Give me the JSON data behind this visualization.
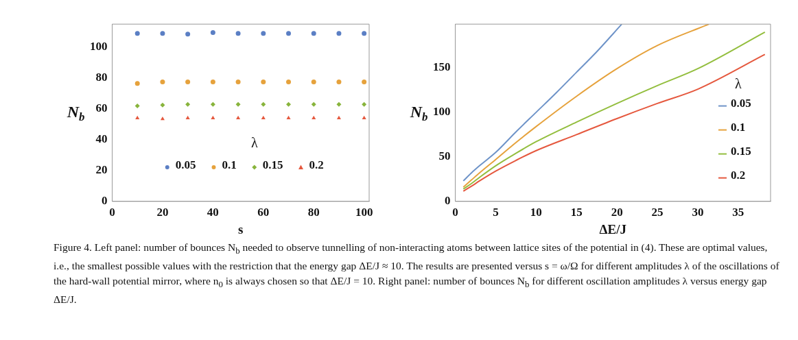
{
  "chart_data": [
    {
      "type": "scatter",
      "xlabel": "s",
      "ylabel": "N$_{b}$",
      "legend_title": "λ",
      "legend": "bottom",
      "x": [
        10,
        20,
        30,
        40,
        50,
        60,
        70,
        80,
        90,
        100
      ],
      "xlim": [
        0,
        102
      ],
      "xticks": [
        0,
        20,
        40,
        60,
        80,
        100
      ],
      "ylim": [
        0,
        115
      ],
      "yticks": [
        0,
        20,
        40,
        60,
        80,
        100
      ],
      "series": [
        {
          "name": "0.05",
          "color": "#5b7fc4",
          "marker": "circle",
          "values": [
            109,
            109,
            108.5,
            109.5,
            109,
            109,
            109,
            109,
            109,
            109
          ]
        },
        {
          "name": "0.1",
          "color": "#e6a23c",
          "marker": "circle",
          "values": [
            76.5,
            77.5,
            77.5,
            77.5,
            77.5,
            77.5,
            77.5,
            77.5,
            77.5,
            77.5
          ]
        },
        {
          "name": "0.15",
          "color": "#88b43c",
          "marker": "diamond",
          "values": [
            62,
            62.5,
            63,
            63,
            63,
            63,
            63,
            63,
            63,
            63
          ]
        },
        {
          "name": "0.2",
          "color": "#e5583e",
          "marker": "triangle",
          "values": [
            54,
            53.5,
            54,
            54,
            54,
            54,
            54,
            54,
            54,
            54
          ]
        }
      ],
      "annotations": [
        "Figure 4. Left panel: number of bounces N$_{b}$ needed to observe tunnelling of non-interacting atoms between lattice sites of the potential in (4). These are optimal values, i.e., the smallest possible values with the restriction that the energy gap ΔE/J ≈ 10. The results are presented versus s = ω/Ω for different amplitudes λ of the oscillations of the hard-wall potential mirror, where n$_{0}$ is always chosen so that ΔE/J = 10. Right panel: number of bounces N$_{b}$ for different oscillation amplitudes λ versus energy gap ΔE/J."
      ]
    },
    {
      "type": "line",
      "xlabel": "ΔE/J",
      "ylabel": "N$_{b}$",
      "legend_title": "λ",
      "legend": "right",
      "xlim": [
        0,
        39
      ],
      "xticks": [
        0,
        5,
        10,
        15,
        20,
        25,
        30,
        35
      ],
      "ylim": [
        0,
        199
      ],
      "yticks": [
        0,
        50,
        100,
        150
      ],
      "series": [
        {
          "name": "0.05",
          "color": "#6e93c8",
          "x": [
            1,
            2,
            3,
            5,
            7.5,
            10,
            12.5,
            15,
            17.5,
            20.6
          ],
          "values": [
            23,
            32,
            40,
            55,
            78,
            100,
            122,
            145,
            168,
            199
          ]
        },
        {
          "name": "0.1",
          "color": "#e6a23c",
          "x": [
            1,
            2,
            3,
            5,
            7.5,
            10,
            15,
            20,
            25,
            31.4
          ],
          "values": [
            16,
            24,
            32,
            47,
            66,
            84,
            118,
            149,
            175,
            199
          ]
        },
        {
          "name": "0.15",
          "color": "#93be3e",
          "x": [
            1,
            2,
            3,
            5,
            7.5,
            10,
            15,
            20,
            25,
            30,
            38.3
          ],
          "values": [
            14,
            20,
            27,
            40,
            54,
            67,
            89,
            110,
            130,
            149,
            190
          ]
        },
        {
          "name": "0.2",
          "color": "#e5583e",
          "x": [
            1,
            2,
            3,
            5,
            7.5,
            10,
            15,
            20,
            25,
            30,
            38.3
          ],
          "values": [
            11.5,
            17,
            23,
            34,
            46,
            57,
            75,
            93,
            110,
            126,
            165
          ]
        }
      ]
    }
  ]
}
